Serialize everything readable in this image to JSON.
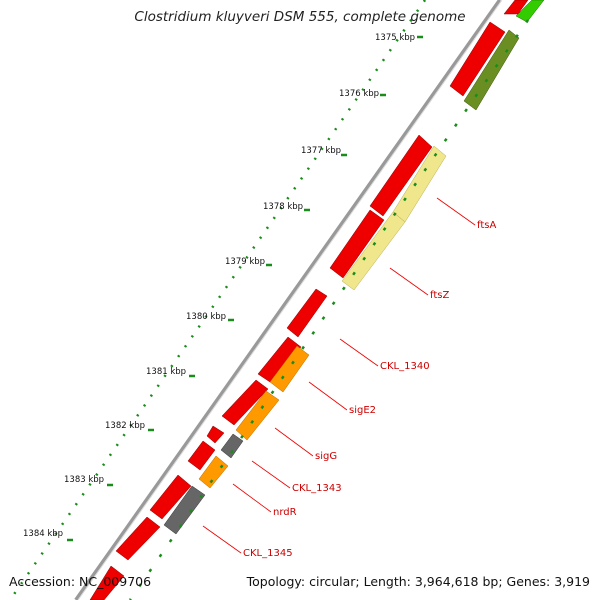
{
  "title": "Clostridium kluyveri DSM 555, complete genome",
  "footer": {
    "accession": "Accession: NC_009706",
    "stats": "Topology: circular; Length: 3,964,618 bp; Genes: 3,919"
  },
  "ruler": {
    "unit": "kbp",
    "ticks": [
      "1375 kbp",
      "1376 kbp",
      "1377 kbp",
      "1378 kbp",
      "1379 kbp",
      "1380 kbp",
      "1381 kbp",
      "1382 kbp",
      "1383 kbp",
      "1384 kbp"
    ]
  },
  "gene_labels": [
    "ftsA",
    "ftsZ",
    "CKL_1340",
    "sigE2",
    "sigG",
    "CKL_1343",
    "nrdR",
    "CKL_1345"
  ],
  "colors": {
    "cds_forward": "#ee0000",
    "label_text": "#cc0000",
    "label_line": "#ee0000",
    "ftsA_ftsZ_gene": "#f0e68c",
    "sigma_genes": "#ff9900",
    "gray_genes": "#666666",
    "olive_gene": "#6b8e23",
    "green_gene": "#33cc00",
    "backbone": "#888888",
    "tick_dots": "#1a8c1a"
  }
}
